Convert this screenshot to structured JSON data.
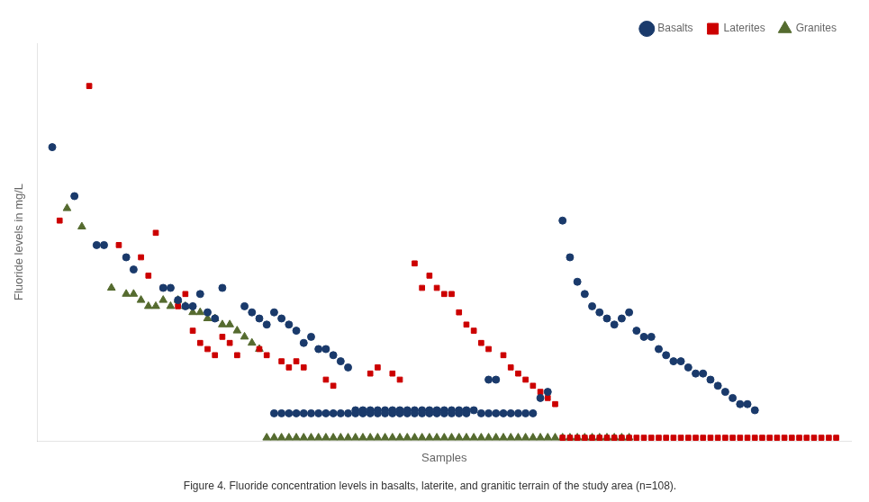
{
  "chart_data": {
    "type": "scatter",
    "xlabel": "Samples",
    "ylabel": "Fluoride levels in mg/L",
    "subtitle": "Figure 4. Fluoride concentration levels in basalts, laterite, and granitic terrain of the study area (n=108).",
    "xlim": [
      0,
      110
    ],
    "ylim": [
      0,
      6.5
    ],
    "tick_labels": false,
    "grid": false,
    "legend": "upper right",
    "series": [
      {
        "name": "Basalts",
        "color": "#1a3a6b",
        "marker": "circle",
        "x": [
          2,
          5,
          8,
          9,
          12,
          13,
          17,
          18,
          19,
          20,
          21,
          22,
          23,
          24,
          25,
          28,
          29,
          30,
          31,
          32,
          33,
          34,
          35,
          36,
          37,
          38,
          39,
          40,
          41,
          42,
          43,
          44,
          45,
          46,
          47,
          48,
          49,
          50,
          51,
          52,
          53,
          54,
          55,
          56,
          57,
          58,
          59,
          61,
          62,
          68,
          69,
          71,
          72,
          73,
          74,
          75,
          76,
          77,
          78,
          79,
          80,
          81,
          82,
          83,
          84,
          85,
          86,
          87,
          88,
          89,
          90,
          91,
          92,
          93,
          94,
          95,
          96,
          97,
          32,
          33,
          34,
          35,
          36,
          37,
          38,
          39,
          40,
          41,
          42,
          43,
          44,
          45,
          46,
          47,
          48,
          49,
          50,
          51,
          52,
          53,
          54,
          55,
          56,
          57,
          58,
          60,
          61,
          62,
          63,
          64,
          65,
          66,
          67
        ],
        "values": [
          4.8,
          4.0,
          3.2,
          3.2,
          3.0,
          2.8,
          2.5,
          2.5,
          2.3,
          2.2,
          2.2,
          2.4,
          2.1,
          2.0,
          2.5,
          2.2,
          2.1,
          2.0,
          1.9,
          2.1,
          2.0,
          1.9,
          1.8,
          1.6,
          1.7,
          1.5,
          1.5,
          1.4,
          1.3,
          1.2,
          0.5,
          0.5,
          0.5,
          0.5,
          0.5,
          0.5,
          0.5,
          0.5,
          0.5,
          0.5,
          0.5,
          0.5,
          0.5,
          0.5,
          0.5,
          0.5,
          0.5,
          1.0,
          1.0,
          0.7,
          0.8,
          3.6,
          3.0,
          2.6,
          2.4,
          2.2,
          2.1,
          2.0,
          1.9,
          2.0,
          2.1,
          1.8,
          1.7,
          1.7,
          1.5,
          1.4,
          1.3,
          1.3,
          1.2,
          1.1,
          1.1,
          1.0,
          0.9,
          0.8,
          0.7,
          0.6,
          0.6,
          0.5,
          0.45,
          0.45,
          0.45,
          0.45,
          0.45,
          0.45,
          0.45,
          0.45,
          0.45,
          0.45,
          0.45,
          0.45,
          0.45,
          0.45,
          0.45,
          0.45,
          0.45,
          0.45,
          0.45,
          0.45,
          0.45,
          0.45,
          0.45,
          0.45,
          0.45,
          0.45,
          0.45,
          0.45,
          0.45,
          0.45,
          0.45,
          0.45,
          0.45,
          0.45,
          0.45
        ]
      },
      {
        "name": "Laterites",
        "color": "#cc0000",
        "marker": "square",
        "x": [
          3,
          7,
          11,
          14,
          15,
          16,
          17,
          19,
          20,
          21,
          22,
          23,
          24,
          25,
          26,
          27,
          30,
          31,
          33,
          34,
          35,
          36,
          39,
          40,
          45,
          46,
          48,
          49,
          51,
          52,
          53,
          54,
          55,
          56,
          57,
          58,
          59,
          60,
          61,
          63,
          64,
          65,
          66,
          67,
          68,
          69,
          70,
          71,
          72,
          73,
          74,
          75,
          76,
          77,
          78,
          79,
          80,
          81,
          82,
          83,
          84,
          85,
          86,
          87,
          88,
          89,
          90,
          91,
          92,
          93,
          94,
          95,
          96,
          97,
          98,
          99,
          100,
          101,
          102,
          103,
          104,
          105,
          106,
          107,
          108
        ],
        "values": [
          3.6,
          5.8,
          3.2,
          3.0,
          2.7,
          3.4,
          2.5,
          2.2,
          2.4,
          1.8,
          1.6,
          1.5,
          1.4,
          1.7,
          1.6,
          1.4,
          1.5,
          1.4,
          1.3,
          1.2,
          1.3,
          1.2,
          1.0,
          0.9,
          1.1,
          1.2,
          1.1,
          1.0,
          2.9,
          2.5,
          2.7,
          2.5,
          2.4,
          2.4,
          2.1,
          1.9,
          1.8,
          1.6,
          1.5,
          1.4,
          1.2,
          1.1,
          1.0,
          0.9,
          0.8,
          0.7,
          0.6,
          0.05,
          0.05,
          0.05,
          0.05,
          0.05,
          0.05,
          0.05,
          0.05,
          0.05,
          0.05,
          0.05,
          0.05,
          0.05,
          0.05,
          0.05,
          0.05,
          0.05,
          0.05,
          0.05,
          0.05,
          0.05,
          0.05,
          0.05,
          0.05,
          0.05,
          0.05,
          0.05,
          0.05,
          0.05,
          0.05,
          0.05,
          0.05,
          0.05,
          0.05,
          0.05,
          0.05,
          0.05,
          0.05
        ]
      },
      {
        "name": "Granites",
        "color": "#556b2f",
        "marker": "triangle",
        "x": [
          4,
          6,
          10,
          12,
          13,
          14,
          15,
          16,
          17,
          18,
          19,
          20,
          21,
          22,
          23,
          24,
          25,
          26,
          27,
          28,
          29,
          30,
          31,
          32,
          33,
          34,
          35,
          36,
          37,
          38,
          39,
          40,
          41,
          42,
          43,
          44,
          45,
          46,
          47,
          48,
          49,
          50,
          51,
          52,
          53,
          54,
          55,
          56,
          57,
          58,
          59,
          60,
          61,
          62,
          63,
          64,
          65,
          66,
          67,
          68,
          69,
          70,
          71,
          72,
          73,
          74,
          75,
          76,
          77,
          78,
          79,
          80
        ],
        "values": [
          3.8,
          3.5,
          2.5,
          2.4,
          2.4,
          2.3,
          2.2,
          2.2,
          2.3,
          2.2,
          2.3,
          2.2,
          2.1,
          2.1,
          2.0,
          2.0,
          1.9,
          1.9,
          1.8,
          1.7,
          1.6,
          1.5,
          0.05,
          0.05,
          0.05,
          0.05,
          0.05,
          0.05,
          0.05,
          0.05,
          0.05,
          0.05,
          0.05,
          0.05,
          0.05,
          0.05,
          0.05,
          0.05,
          0.05,
          0.05,
          0.05,
          0.05,
          0.05,
          0.05,
          0.05,
          0.05,
          0.05,
          0.05,
          0.05,
          0.05,
          0.05,
          0.05,
          0.05,
          0.05,
          0.05,
          0.05,
          0.05,
          0.05,
          0.05,
          0.05,
          0.05,
          0.05,
          0.05,
          0.05,
          0.05,
          0.05,
          0.05,
          0.05,
          0.05,
          0.05,
          0.05,
          0.05
        ]
      }
    ]
  }
}
